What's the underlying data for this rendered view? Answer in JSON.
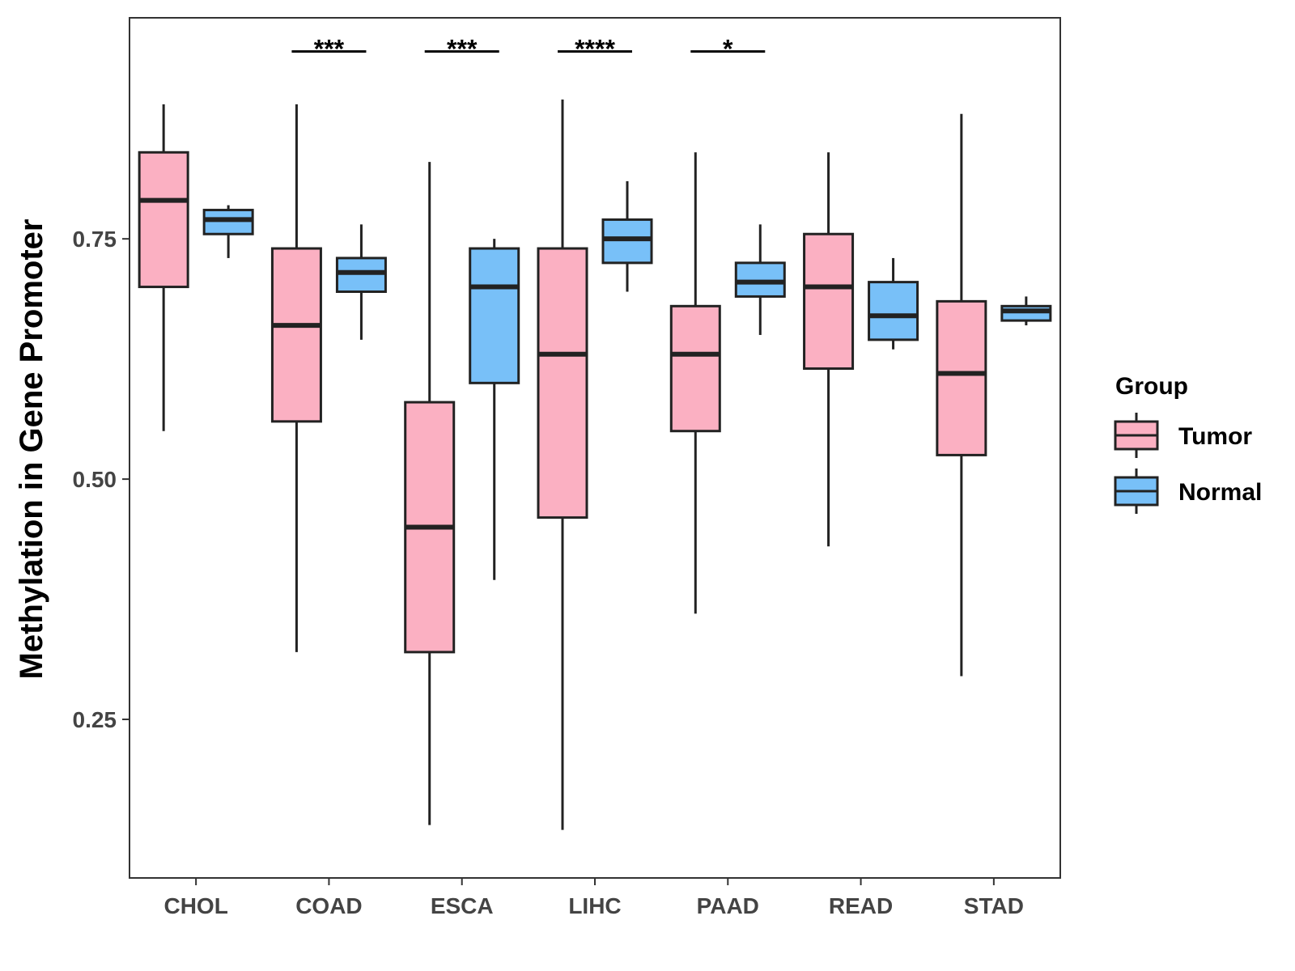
{
  "chart_data": {
    "type": "boxplot",
    "ylabel": "Methylation in Gene Promoter",
    "xlabel": "",
    "ylim": [
      0.085,
      0.98
    ],
    "yticks": [
      0.25,
      0.5,
      0.75
    ],
    "ytick_labels": [
      "0.25",
      "0.50",
      "0.75"
    ],
    "categories": [
      "CHOL",
      "COAD",
      "ESCA",
      "LIHC",
      "PAAD",
      "READ",
      "STAD"
    ],
    "legend": {
      "title": "Group",
      "placement": "right",
      "entries": [
        {
          "name": "Tumor",
          "color": "#FBB0C2"
        },
        {
          "name": "Normal",
          "color": "#78C0F8"
        }
      ]
    },
    "series": [
      {
        "name": "Tumor",
        "color": "#FBB0C2",
        "boxes": [
          {
            "category": "CHOL",
            "min": 0.55,
            "q1": 0.7,
            "median": 0.79,
            "q3": 0.84,
            "max": 0.89
          },
          {
            "category": "COAD",
            "min": 0.32,
            "q1": 0.56,
            "median": 0.66,
            "q3": 0.74,
            "max": 0.89
          },
          {
            "category": "ESCA",
            "min": 0.14,
            "q1": 0.32,
            "median": 0.45,
            "q3": 0.58,
            "max": 0.83
          },
          {
            "category": "LIHC",
            "min": 0.135,
            "q1": 0.46,
            "median": 0.63,
            "q3": 0.74,
            "max": 0.895
          },
          {
            "category": "PAAD",
            "min": 0.36,
            "q1": 0.55,
            "median": 0.63,
            "q3": 0.68,
            "max": 0.84
          },
          {
            "category": "READ",
            "min": 0.43,
            "q1": 0.615,
            "median": 0.7,
            "q3": 0.755,
            "max": 0.84
          },
          {
            "category": "STAD",
            "min": 0.295,
            "q1": 0.525,
            "median": 0.61,
            "q3": 0.685,
            "max": 0.88
          }
        ]
      },
      {
        "name": "Normal",
        "color": "#78C0F8",
        "boxes": [
          {
            "category": "CHOL",
            "min": 0.73,
            "q1": 0.755,
            "median": 0.77,
            "q3": 0.78,
            "max": 0.785
          },
          {
            "category": "COAD",
            "min": 0.645,
            "q1": 0.695,
            "median": 0.715,
            "q3": 0.73,
            "max": 0.765
          },
          {
            "category": "ESCA",
            "min": 0.395,
            "q1": 0.6,
            "median": 0.7,
            "q3": 0.74,
            "max": 0.75
          },
          {
            "category": "LIHC",
            "min": 0.695,
            "q1": 0.725,
            "median": 0.75,
            "q3": 0.77,
            "max": 0.81
          },
          {
            "category": "PAAD",
            "min": 0.65,
            "q1": 0.69,
            "median": 0.705,
            "q3": 0.725,
            "max": 0.765
          },
          {
            "category": "READ",
            "min": 0.635,
            "q1": 0.645,
            "median": 0.67,
            "q3": 0.705,
            "max": 0.73
          },
          {
            "category": "STAD",
            "min": 0.66,
            "q1": 0.665,
            "median": 0.675,
            "q3": 0.68,
            "max": 0.69
          }
        ]
      }
    ],
    "annotations": [
      {
        "category": "COAD",
        "label": "***",
        "y": 0.945
      },
      {
        "category": "ESCA",
        "label": "***",
        "y": 0.945
      },
      {
        "category": "LIHC",
        "label": "****",
        "y": 0.945
      },
      {
        "category": "PAAD",
        "label": "*",
        "y": 0.945
      }
    ]
  }
}
